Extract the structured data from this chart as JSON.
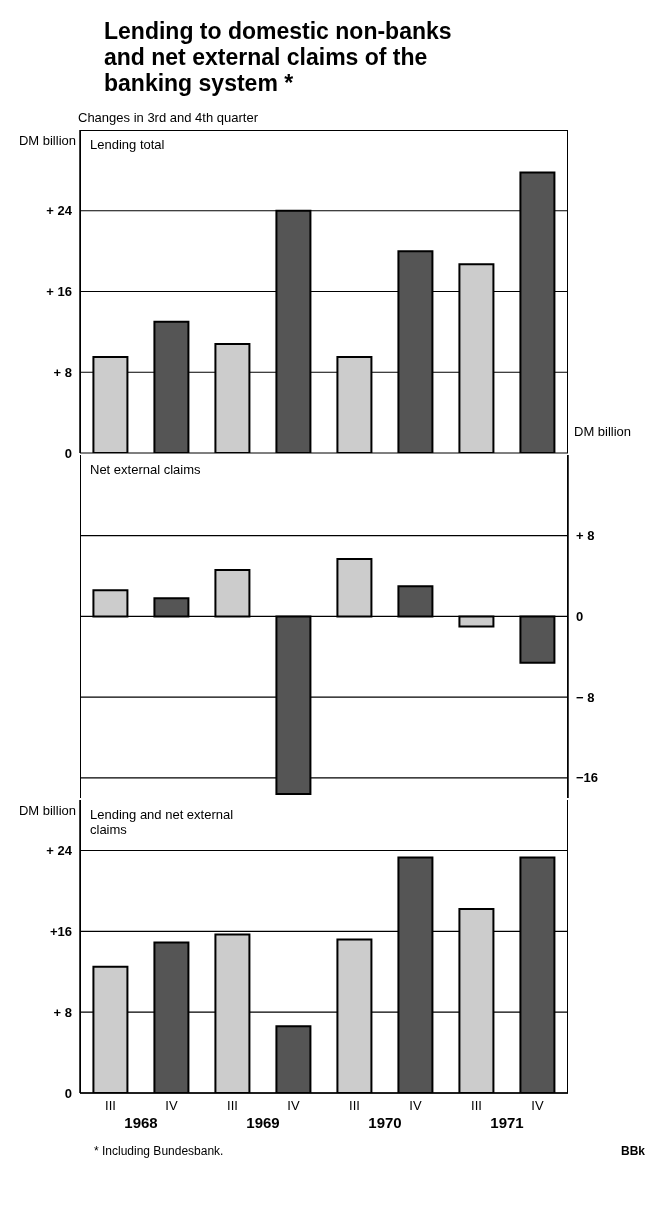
{
  "chart_data": [
    {
      "type": "bar",
      "title": "Lending to domestic non-banks and net external claims of the banking system *",
      "subtitle": "Changes in 3rd and 4th quarter",
      "annotations": [
        "Lending total"
      ],
      "ylabel": "DM billion",
      "categories": [
        null,
        null,
        null,
        null,
        null,
        null,
        null,
        null
      ],
      "values": [
        9.5,
        13.0,
        10.8,
        24.0,
        9.5,
        20.0,
        18.7,
        27.8
      ],
      "colors": [
        "#cccccc",
        "#555555",
        "#cccccc",
        "#555555",
        "#cccccc",
        "#555555",
        "#cccccc",
        "#555555"
      ],
      "ylim": [
        0,
        32
      ],
      "yticks": [
        0,
        {
          "value": 8,
          "label": "+ 8"
        },
        {
          "value": 16,
          "label": "+ 16"
        },
        {
          "value": 24,
          "label": "+ 24"
        }
      ],
      "grid": "y",
      "tick_labels": "y"
    },
    {
      "type": "bar",
      "annotations": [
        "Net external claims"
      ],
      "y2label": "DM billion",
      "categories": [
        null,
        null,
        null,
        null,
        null,
        null,
        null,
        null
      ],
      "series": [
        {
          "axis": "y2",
          "values": [
            2.6,
            1.8,
            4.6,
            -17.6,
            5.7,
            3.0,
            -1.0,
            -4.6
          ]
        }
      ],
      "colors": [
        "#cccccc",
        "#555555",
        "#cccccc",
        "#555555",
        "#cccccc",
        "#555555",
        "#cccccc",
        "#555555"
      ],
      "y2lim": [
        -18,
        16
      ],
      "y2ticks": [
        {
          "value": -16,
          "label": "−16"
        },
        {
          "value": -8,
          "label": "− 8"
        },
        0,
        {
          "value": 8,
          "label": "+ 8"
        }
      ],
      "grid": "y",
      "tick_labels": "y"
    },
    {
      "type": "bar",
      "annotations": [
        "Lending and net external claims",
        "1968",
        "1969",
        "1970",
        "1971",
        "* Including Bundesbank.",
        "BBk"
      ],
      "ylabel": "DM billion",
      "categories": [
        "III",
        "IV",
        "III",
        "IV",
        "III",
        "IV",
        "III",
        "IV"
      ],
      "values": [
        12.5,
        14.9,
        15.7,
        6.6,
        15.2,
        23.3,
        18.2,
        23.3
      ],
      "colors": [
        "#cccccc",
        "#555555",
        "#cccccc",
        "#555555",
        "#cccccc",
        "#555555",
        "#cccccc",
        "#555555"
      ],
      "ylim": [
        0,
        29
      ],
      "yticks": [
        0,
        {
          "value": 8,
          "label": "+ 8"
        },
        {
          "value": 16,
          "label": "+16"
        },
        {
          "value": 24,
          "label": "+ 24"
        }
      ],
      "grid": "y"
    }
  ]
}
